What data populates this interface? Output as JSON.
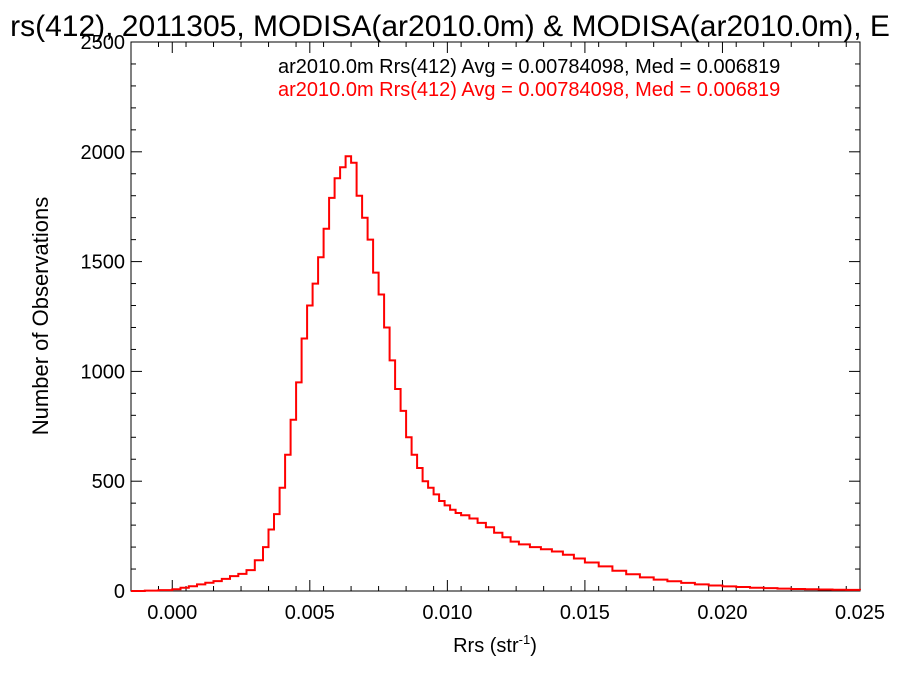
{
  "chart_data": {
    "type": "line",
    "title": "rs(412), 2011305, MODISA(ar2010.0m) & MODISA(ar2010.0m), E",
    "xlabel": "Rrs (str",
    "xlabel_sup": "-1",
    "xlabel_close": ")",
    "ylabel": "Number of Observations",
    "xlim": [
      -0.0015,
      0.025
    ],
    "ylim": [
      0,
      2500
    ],
    "x_ticks": [
      0.0,
      0.005,
      0.01,
      0.015,
      0.02,
      0.025
    ],
    "x_tick_labels": [
      "0.000",
      "0.005",
      "0.010",
      "0.015",
      "0.020",
      "0.025"
    ],
    "y_ticks": [
      0,
      500,
      1000,
      1500,
      2000,
      2500
    ],
    "y_tick_labels": [
      "0",
      "500",
      "1000",
      "1500",
      "2000",
      "2500"
    ],
    "grid": false,
    "legend_position": "top-right",
    "annotations": [
      {
        "text": "ar2010.0m Rrs(412) Avg = 0.00784098, Med = 0.006819",
        "color": "#000000"
      },
      {
        "text": "ar2010.0m Rrs(412) Avg = 0.00784098, Med = 0.006819",
        "color": "#ff0000"
      }
    ],
    "series": [
      {
        "color": "#ff0000",
        "style": "step",
        "points": [
          [
            -0.0015,
            0
          ],
          [
            -0.001,
            2
          ],
          [
            -0.0005,
            4
          ],
          [
            0.0,
            8
          ],
          [
            0.0003,
            15
          ],
          [
            0.0006,
            22
          ],
          [
            0.0009,
            30
          ],
          [
            0.0012,
            38
          ],
          [
            0.0015,
            45
          ],
          [
            0.0018,
            55
          ],
          [
            0.0021,
            68
          ],
          [
            0.0024,
            78
          ],
          [
            0.0027,
            95
          ],
          [
            0.003,
            140
          ],
          [
            0.0033,
            200
          ],
          [
            0.0035,
            280
          ],
          [
            0.0037,
            350
          ],
          [
            0.0039,
            470
          ],
          [
            0.0041,
            620
          ],
          [
            0.0043,
            780
          ],
          [
            0.0045,
            950
          ],
          [
            0.0047,
            1150
          ],
          [
            0.0049,
            1300
          ],
          [
            0.0051,
            1400
          ],
          [
            0.0053,
            1520
          ],
          [
            0.0055,
            1650
          ],
          [
            0.0057,
            1790
          ],
          [
            0.0059,
            1880
          ],
          [
            0.0061,
            1930
          ],
          [
            0.0063,
            1980
          ],
          [
            0.0065,
            1950
          ],
          [
            0.0067,
            1800
          ],
          [
            0.0069,
            1700
          ],
          [
            0.0071,
            1600
          ],
          [
            0.0073,
            1450
          ],
          [
            0.0075,
            1350
          ],
          [
            0.0077,
            1200
          ],
          [
            0.0079,
            1050
          ],
          [
            0.0081,
            920
          ],
          [
            0.0083,
            820
          ],
          [
            0.0085,
            700
          ],
          [
            0.0087,
            620
          ],
          [
            0.0089,
            560
          ],
          [
            0.0091,
            500
          ],
          [
            0.0093,
            470
          ],
          [
            0.0095,
            440
          ],
          [
            0.0097,
            410
          ],
          [
            0.0099,
            390
          ],
          [
            0.0101,
            370
          ],
          [
            0.0103,
            355
          ],
          [
            0.0105,
            345
          ],
          [
            0.0108,
            330
          ],
          [
            0.0111,
            310
          ],
          [
            0.0114,
            290
          ],
          [
            0.0117,
            265
          ],
          [
            0.012,
            245
          ],
          [
            0.0123,
            225
          ],
          [
            0.0126,
            212
          ],
          [
            0.013,
            200
          ],
          [
            0.0134,
            190
          ],
          [
            0.0138,
            180
          ],
          [
            0.0142,
            165
          ],
          [
            0.0146,
            148
          ],
          [
            0.015,
            130
          ],
          [
            0.0155,
            112
          ],
          [
            0.016,
            92
          ],
          [
            0.0165,
            76
          ],
          [
            0.017,
            62
          ],
          [
            0.0175,
            52
          ],
          [
            0.018,
            44
          ],
          [
            0.0185,
            37
          ],
          [
            0.019,
            30
          ],
          [
            0.0195,
            25
          ],
          [
            0.02,
            21
          ],
          [
            0.0205,
            18
          ],
          [
            0.021,
            15
          ],
          [
            0.0215,
            13
          ],
          [
            0.022,
            11
          ],
          [
            0.0225,
            9
          ],
          [
            0.023,
            8
          ],
          [
            0.0235,
            7
          ],
          [
            0.024,
            6
          ],
          [
            0.0245,
            5
          ],
          [
            0.025,
            4
          ]
        ]
      }
    ]
  }
}
